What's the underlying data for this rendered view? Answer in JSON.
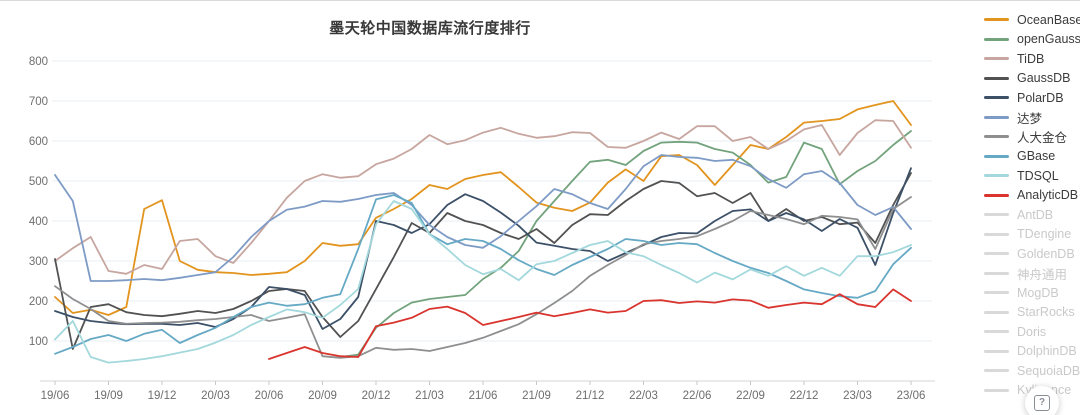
{
  "chart_data": {
    "type": "line",
    "title": "墨天轮中国数据库流行度排行",
    "xlabel": "",
    "ylabel": "",
    "ylim": [
      0,
      800
    ],
    "y_ticks": [
      100,
      200,
      300,
      400,
      500,
      600,
      700,
      800
    ],
    "grid": "horizontal",
    "legend_position": "right",
    "x_labels": [
      "19/06",
      "19/07",
      "19/08",
      "19/09",
      "19/10",
      "19/11",
      "19/12",
      "20/01",
      "20/02",
      "20/03",
      "20/04",
      "20/05",
      "20/06",
      "20/07",
      "20/08",
      "20/09",
      "20/10",
      "20/11",
      "20/12",
      "21/01",
      "21/02",
      "21/03",
      "21/04",
      "21/05",
      "21/06",
      "21/07",
      "21/08",
      "21/09",
      "21/10",
      "21/11",
      "21/12",
      "22/01",
      "22/02",
      "22/03",
      "22/04",
      "22/05",
      "22/06",
      "22/07",
      "22/08",
      "22/09",
      "22/10",
      "22/11",
      "22/12",
      "23/01",
      "23/02",
      "23/03",
      "23/04",
      "23/05",
      "23/06"
    ],
    "x_tick_labels": [
      "19/06",
      "19/09",
      "19/12",
      "20/03",
      "20/06",
      "20/09",
      "20/12",
      "21/03",
      "21/06",
      "21/09",
      "21/12",
      "22/03",
      "22/06",
      "22/09",
      "22/12",
      "23/03",
      "23/06"
    ],
    "series": [
      {
        "name": "OceanBase",
        "color": "#E2941E",
        "values": [
          210,
          170,
          178,
          165,
          185,
          430,
          452,
          300,
          278,
          272,
          270,
          265,
          268,
          272,
          300,
          345,
          338,
          342,
          408,
          430,
          455,
          490,
          480,
          505,
          515,
          522,
          485,
          446,
          433,
          425,
          446,
          496,
          529,
          500,
          562,
          565,
          540,
          490,
          540,
          590,
          580,
          610,
          646,
          650,
          655,
          679,
          690,
          700,
          640
        ]
      },
      {
        "name": "openGauss",
        "color": "#73A37D",
        "values": [
          null,
          null,
          null,
          null,
          null,
          null,
          null,
          null,
          null,
          null,
          null,
          null,
          null,
          null,
          null,
          null,
          60,
          66,
          133,
          170,
          196,
          205,
          210,
          215,
          255,
          283,
          325,
          400,
          450,
          500,
          548,
          553,
          540,
          575,
          596,
          598,
          596,
          580,
          571,
          540,
          496,
          510,
          596,
          580,
          492,
          525,
          550,
          590,
          625
        ]
      },
      {
        "name": "TiDB",
        "color": "#C7A6A0",
        "values": [
          300,
          332,
          360,
          275,
          268,
          290,
          280,
          350,
          355,
          312,
          295,
          345,
          400,
          458,
          500,
          517,
          508,
          512,
          542,
          556,
          580,
          615,
          592,
          602,
          621,
          633,
          618,
          608,
          612,
          622,
          620,
          585,
          583,
          600,
          621,
          605,
          637,
          637,
          600,
          610,
          580,
          600,
          629,
          640,
          565,
          620,
          652,
          650,
          583
        ]
      },
      {
        "name": "GaussDB",
        "color": "#525252",
        "values": [
          305,
          80,
          185,
          192,
          172,
          165,
          162,
          168,
          175,
          170,
          180,
          200,
          225,
          230,
          225,
          160,
          110,
          150,
          230,
          310,
          395,
          370,
          420,
          400,
          390,
          370,
          355,
          380,
          345,
          390,
          417,
          415,
          450,
          480,
          500,
          495,
          462,
          470,
          445,
          470,
          400,
          430,
          400,
          410,
          392,
          396,
          345,
          440,
          520
        ]
      },
      {
        "name": "PolarDB",
        "color": "#3C5068",
        "values": [
          175,
          160,
          150,
          145,
          142,
          143,
          143,
          140,
          145,
          135,
          155,
          185,
          235,
          230,
          215,
          130,
          155,
          210,
          400,
          390,
          370,
          392,
          440,
          467,
          450,
          421,
          388,
          346,
          338,
          330,
          325,
          300,
          320,
          340,
          360,
          370,
          369,
          400,
          425,
          429,
          400,
          420,
          404,
          375,
          405,
          383,
          290,
          420,
          532
        ]
      },
      {
        "name": "达梦",
        "color": "#7E9BC6",
        "values": [
          515,
          450,
          250,
          250,
          252,
          255,
          252,
          258,
          265,
          272,
          310,
          360,
          400,
          428,
          436,
          450,
          448,
          455,
          465,
          470,
          440,
          390,
          360,
          340,
          333,
          362,
          400,
          437,
          480,
          467,
          445,
          430,
          480,
          537,
          565,
          560,
          558,
          550,
          553,
          537,
          505,
          483,
          517,
          525,
          495,
          440,
          415,
          435,
          380
        ]
      },
      {
        "name": "人大金仓",
        "color": "#8F8F8F",
        "values": [
          237,
          205,
          180,
          150,
          143,
          145,
          146,
          148,
          152,
          155,
          160,
          165,
          150,
          158,
          167,
          62,
          58,
          62,
          83,
          78,
          80,
          75,
          85,
          95,
          108,
          125,
          142,
          167,
          195,
          225,
          263,
          290,
          315,
          342,
          350,
          355,
          362,
          380,
          400,
          425,
          415,
          405,
          392,
          413,
          410,
          404,
          330,
          430,
          460
        ]
      },
      {
        "name": "GBase",
        "color": "#66A9C5",
        "values": [
          68,
          85,
          105,
          115,
          100,
          118,
          128,
          95,
          115,
          133,
          160,
          185,
          196,
          188,
          192,
          208,
          217,
          330,
          454,
          465,
          445,
          367,
          342,
          355,
          350,
          330,
          302,
          280,
          265,
          290,
          310,
          330,
          355,
          350,
          340,
          345,
          342,
          320,
          300,
          283,
          270,
          250,
          229,
          220,
          212,
          208,
          225,
          292,
          333
        ]
      },
      {
        "name": "TDSQL",
        "color": "#A3D8DC",
        "values": [
          104,
          150,
          60,
          46,
          50,
          55,
          62,
          71,
          80,
          96,
          115,
          140,
          160,
          179,
          172,
          158,
          190,
          230,
          392,
          450,
          430,
          367,
          330,
          290,
          267,
          280,
          252,
          292,
          300,
          320,
          340,
          350,
          322,
          312,
          290,
          270,
          246,
          271,
          254,
          279,
          263,
          287,
          263,
          283,
          263,
          312,
          312,
          322,
          340
        ]
      },
      {
        "name": "AnalyticDB",
        "color": "#D9342E",
        "values": [
          null,
          null,
          null,
          null,
          null,
          null,
          null,
          null,
          null,
          null,
          null,
          null,
          55,
          70,
          85,
          70,
          62,
          60,
          137,
          146,
          158,
          180,
          186,
          170,
          140,
          150,
          160,
          171,
          162,
          170,
          179,
          171,
          175,
          200,
          202,
          195,
          199,
          196,
          204,
          201,
          183,
          190,
          196,
          192,
          217,
          192,
          185,
          229,
          200
        ]
      }
    ],
    "disabled_series": [
      "AntDB",
      "TDengine",
      "GoldenDB",
      "神舟通用",
      "MogDB",
      "StarRocks",
      "Doris",
      "DolphinDB",
      "SequoiaDB",
      "Kyligence"
    ]
  },
  "help_button": {
    "icon_label": "?"
  }
}
